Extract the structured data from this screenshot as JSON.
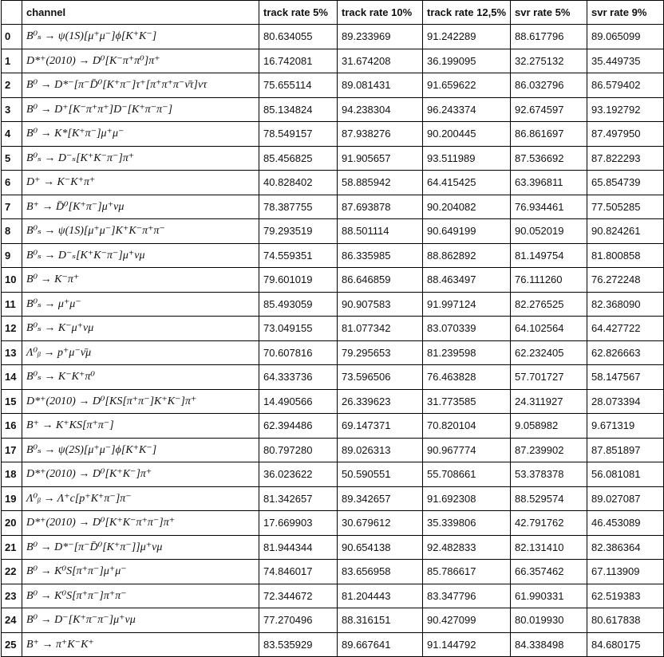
{
  "table": {
    "headers": [
      "",
      "channel",
      "track rate 5%",
      "track rate 10%",
      "track rate 12,5%",
      "svr rate 5%",
      "svr rate 9%"
    ],
    "rows": [
      [
        "0",
        "B⁰ₛ → ψ(1S)[μ⁺μ⁻]ϕ[K⁺K⁻]",
        "80.634055",
        "89.233969",
        "91.242289",
        "88.617796",
        "89.065099"
      ],
      [
        "1",
        "D*⁺(2010) → D⁰[K⁻π⁺π⁰]π⁺",
        "16.742081",
        "31.674208",
        "36.199095",
        "32.275132",
        "35.449735"
      ],
      [
        "2",
        "B⁰ → D*⁻[π⁻D̄⁰[K⁺π⁻]τ⁺[π⁺π⁺π⁻ν̄τ]ντ",
        "75.655114",
        "89.081431",
        "91.659622",
        "86.032796",
        "86.579402"
      ],
      [
        "3",
        "B⁰ → D⁺[K⁻π⁺π⁺]D⁻[K⁺π⁻π⁻]",
        "85.134824",
        "94.238304",
        "96.243374",
        "92.674597",
        "93.192792"
      ],
      [
        "4",
        "B⁰ → K*[K⁺π⁻]μ⁺μ⁻",
        "78.549157",
        "87.938276",
        "90.200445",
        "86.861697",
        "87.497950"
      ],
      [
        "5",
        "B⁰ₛ → D⁻ₛ[K⁺K⁻π⁻]π⁺",
        "85.456825",
        "91.905657",
        "93.511989",
        "87.536692",
        "87.822293"
      ],
      [
        "6",
        "D⁺ → K⁻K⁺π⁺",
        "40.828402",
        "58.885942",
        "64.415425",
        "63.396811",
        "65.854739"
      ],
      [
        "7",
        "B⁺ → D̄⁰[K⁺π⁻]μ⁺νμ",
        "78.387755",
        "87.693878",
        "90.204082",
        "76.934461",
        "77.505285"
      ],
      [
        "8",
        "B⁰ₛ → ψ(1S)[μ⁺μ⁻]K⁺K⁻π⁺π⁻",
        "79.293519",
        "88.501114",
        "90.649199",
        "90.052019",
        "90.824261"
      ],
      [
        "9",
        "B⁰ₛ → D⁻ₛ[K⁺K⁻π⁻]μ⁺νμ",
        "74.559351",
        "86.335985",
        "88.862892",
        "81.149754",
        "81.800858"
      ],
      [
        "10",
        "B⁰ → K⁻π⁺",
        "79.601019",
        "86.646859",
        "88.463497",
        "76.111260",
        "76.272248"
      ],
      [
        "11",
        "B⁰ₛ → μ⁺μ⁻",
        "85.493059",
        "90.907583",
        "91.997124",
        "82.276525",
        "82.368090"
      ],
      [
        "12",
        "B⁰ₛ → K⁻μ⁺νμ",
        "73.049155",
        "81.077342",
        "83.070339",
        "64.102564",
        "64.427722"
      ],
      [
        "13",
        "Λ⁰ᵦ → p⁺μ⁻ν̄μ",
        "70.607816",
        "79.295653",
        "81.239598",
        "62.232405",
        "62.826663"
      ],
      [
        "14",
        "B⁰ₛ → K⁻K⁺π⁰",
        "64.333736",
        "73.596506",
        "76.463828",
        "57.701727",
        "58.147567"
      ],
      [
        "15",
        "D*⁺(2010) → D⁰[KS[π⁺π⁻]K⁺K⁻]π⁺",
        "14.490566",
        "26.339623",
        "31.773585",
        "24.311927",
        "28.073394"
      ],
      [
        "16",
        "B⁺ → K⁺KS[π⁺π⁻]",
        "62.394486",
        "69.147371",
        "70.820104",
        "9.058982",
        "9.671319"
      ],
      [
        "17",
        "B⁰ₛ → ψ(2S)[μ⁺μ⁻]ϕ[K⁺K⁻]",
        "80.797280",
        "89.026313",
        "90.967774",
        "87.239902",
        "87.851897"
      ],
      [
        "18",
        "D*⁺(2010) → D⁰[K⁺K⁻]π⁺",
        "36.023622",
        "50.590551",
        "55.708661",
        "53.378378",
        "56.081081"
      ],
      [
        "19",
        "Λ⁰ᵦ → Λ⁺c[p⁺K⁺π⁻]π⁻",
        "81.342657",
        "89.342657",
        "91.692308",
        "88.529574",
        "89.027087"
      ],
      [
        "20",
        "D*⁺(2010) → D⁰[K⁺K⁻π⁺π⁻]π⁺",
        "17.669903",
        "30.679612",
        "35.339806",
        "42.791762",
        "46.453089"
      ],
      [
        "21",
        "B⁰ → D*⁻[π⁻D̄⁰[K⁺π⁻]]μ⁺νμ",
        "81.944344",
        "90.654138",
        "92.482833",
        "82.131410",
        "82.386364"
      ],
      [
        "22",
        "B⁰ → K⁰S[π⁺π⁻]μ⁺μ⁻",
        "74.846017",
        "83.656958",
        "85.786617",
        "66.357462",
        "67.113909"
      ],
      [
        "23",
        "B⁰ → K⁰S[π⁺π⁻]π⁺π⁻",
        "72.344672",
        "81.204443",
        "83.347796",
        "61.990331",
        "62.519383"
      ],
      [
        "24",
        "B⁰ → D⁻[K⁺π⁻π⁻]μ⁺νμ",
        "77.270496",
        "88.316151",
        "90.427099",
        "80.019930",
        "80.617838"
      ],
      [
        "25",
        "B⁺ → π⁺K⁻K⁺",
        "83.535929",
        "89.667641",
        "91.144792",
        "84.338498",
        "84.680175"
      ]
    ]
  }
}
